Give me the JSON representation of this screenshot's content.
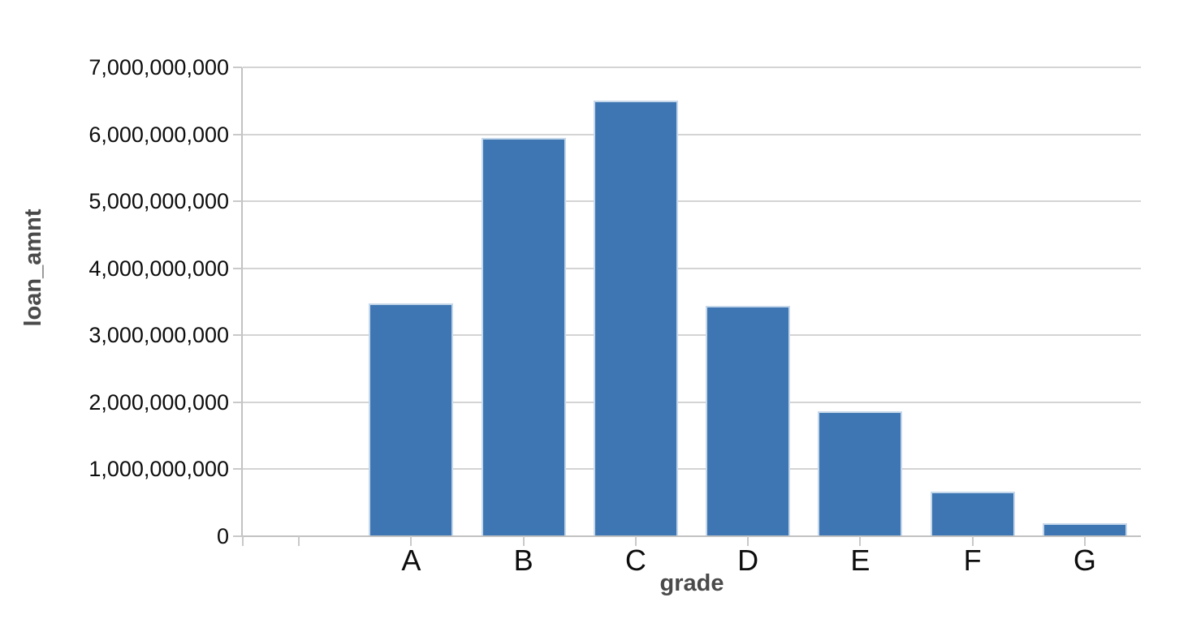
{
  "chart_data": {
    "type": "bar",
    "title": "",
    "xlabel": "grade",
    "ylabel": "loan_amnt",
    "categories": [
      "",
      "A",
      "B",
      "C",
      "D",
      "E",
      "F",
      "G"
    ],
    "values": [
      null,
      3480000000,
      5950000000,
      6500000000,
      3440000000,
      1860000000,
      670000000,
      190000000
    ],
    "ylim": [
      0,
      7000000000
    ],
    "ytick_step": 1000000000,
    "ytick_labels": [
      "0",
      "1,000,000,000",
      "2,000,000,000",
      "3,000,000,000",
      "4,000,000,000",
      "5,000,000,000",
      "6,000,000,000",
      "7,000,000,000"
    ],
    "grid": true,
    "legend": "none",
    "colors": {
      "bar_fill": "#3D76B2",
      "bar_border": "#C5D7EA",
      "gridline": "#D4D4D4",
      "axis_line": "#C2C2C2",
      "tick_mark": "#C9C9C9",
      "tick_label_text": "#0D0D0D",
      "axis_title_text": "#4A4A4A",
      "background": "#FFFFFF"
    }
  }
}
